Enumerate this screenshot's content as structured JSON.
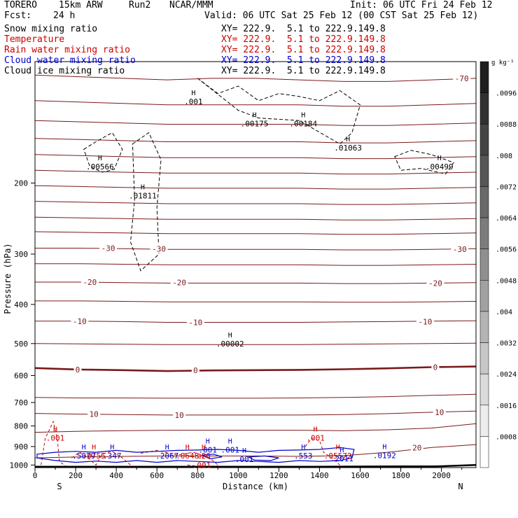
{
  "header": {
    "model": "TORERO",
    "resolution": "15km ARW",
    "run": "Run2",
    "center": "NCAR/MMM",
    "init": "Init: 06 UTC Fri 24 Feb 12",
    "fcst_label": "Fcst:",
    "fcst_value": "24 h",
    "valid": "Valid: 06 UTC Sat 25 Feb 12 (00 CST Sat 25 Feb 12)"
  },
  "fields": [
    {
      "name": "Snow mixing ratio",
      "xy": "XY= 222.9.  5.1 to 222.9.149.8",
      "color": "#000000"
    },
    {
      "name": "Temperature",
      "xy": "XY= 222.9.  5.1 to 222.9.149.8",
      "color": "#cc0000"
    },
    {
      "name": "Rain water mixing ratio",
      "xy": "XY= 222.9.  5.1 to 222.9.149.8",
      "color": "#cc0000"
    },
    {
      "name": "Cloud water mixing ratio",
      "xy": "XY= 222.9.  5.1 to 222.9.149.8",
      "color": "#0000cc"
    },
    {
      "name": "Cloud ice mixing ratio",
      "xy": "XY= 222.9.  5.1 to 222.9.149.8",
      "color": "#000000"
    }
  ],
  "chart_data": {
    "type": "contour",
    "xlabel": "Distance (km)",
    "ylabel": "Pressure (hPa)",
    "xlim": [
      0,
      2170
    ],
    "ylim": [
      1015,
      100
    ],
    "y_scale": "log",
    "x_ticks": [
      0,
      200,
      400,
      600,
      800,
      1000,
      1200,
      1400,
      1600,
      1800,
      2000
    ],
    "y_ticks": [
      200,
      300,
      400,
      500,
      600,
      700,
      800,
      900,
      1000
    ],
    "left_end_label": "S",
    "right_end_label": "N",
    "colors": {
      "temperature": "#7a1a1a",
      "rain": "#cc0000",
      "cloud_water": "#0000cc",
      "ice": "#000000",
      "terrain": "#000000"
    },
    "temperature_contours": [
      {
        "label": "-70",
        "p": [
          108,
          109,
          110,
          111,
          110,
          110,
          111,
          112,
          112,
          111,
          110
        ]
      },
      {
        "label": "",
        "p": [
          125,
          126,
          127,
          128,
          128,
          128,
          128,
          129,
          129,
          128,
          127
        ]
      },
      {
        "label": "",
        "p": [
          140,
          141,
          142,
          143,
          143,
          143,
          143,
          144,
          144,
          143,
          142
        ]
      },
      {
        "label": "",
        "p": [
          155,
          156,
          157,
          158,
          158,
          158,
          158,
          159,
          159,
          158,
          157
        ]
      },
      {
        "label": "",
        "p": [
          170,
          171,
          172,
          173,
          173,
          173,
          173,
          174,
          174,
          173,
          172
        ]
      },
      {
        "label": "",
        "p": [
          186,
          187,
          188,
          189,
          189,
          189,
          189,
          190,
          190,
          189,
          188
        ]
      },
      {
        "label": "",
        "p": [
          203,
          204,
          205,
          206,
          206,
          206,
          206,
          207,
          207,
          206,
          205
        ]
      },
      {
        "label": "",
        "p": [
          222,
          223,
          224,
          225,
          225,
          225,
          225,
          226,
          226,
          225,
          224
        ]
      },
      {
        "label": "",
        "p": [
          243,
          244,
          245,
          246,
          246,
          246,
          246,
          247,
          247,
          246,
          245
        ]
      },
      {
        "label": "",
        "p": [
          264,
          265,
          266,
          267,
          267,
          267,
          267,
          268,
          268,
          267,
          266
        ]
      },
      {
        "label": "-30",
        "p": [
          290,
          290,
          291,
          292,
          292,
          292,
          292,
          293,
          293,
          292,
          291
        ]
      },
      {
        "label": "",
        "p": [
          317,
          317,
          318,
          319,
          319,
          319,
          319,
          320,
          320,
          319,
          318
        ]
      },
      {
        "label": "-20",
        "p": [
          352,
          352,
          353,
          354,
          354,
          354,
          354,
          355,
          355,
          354,
          353
        ]
      },
      {
        "label": "",
        "p": [
          392,
          392,
          393,
          394,
          394,
          394,
          394,
          395,
          395,
          394,
          393
        ]
      },
      {
        "label": "-10",
        "p": [
          440,
          440,
          441,
          443,
          443,
          443,
          443,
          442,
          441,
          440,
          439
        ]
      },
      {
        "label": "",
        "p": [
          500,
          501,
          502,
          503,
          503,
          503,
          503,
          502,
          501,
          500,
          499
        ]
      },
      {
        "label": "0",
        "p": [
          575,
          580,
          582,
          585,
          583,
          582,
          581,
          579,
          576,
          572,
          570
        ]
      },
      {
        "label": "",
        "p": [
          680,
          682,
          682,
          683,
          683,
          683,
          682,
          680,
          677,
          672,
          668
        ]
      },
      {
        "label": "10",
        "p": [
          745,
          748,
          750,
          752,
          752,
          752,
          752,
          750,
          746,
          740,
          735
        ]
      },
      {
        "label": "",
        "p": [
          830,
          825,
          822,
          820,
          820,
          820,
          820,
          822,
          818,
          810,
          790
        ]
      },
      {
        "label": "20",
        "p": [
          960,
          955,
          952,
          950,
          950,
          950,
          952,
          948,
          930,
          905,
          890
        ]
      }
    ],
    "temperature_labels": [
      {
        "text": "-70",
        "x": 2100,
        "p": 110
      },
      {
        "text": "-30",
        "x": 360,
        "p": 290
      },
      {
        "text": "-30",
        "x": 610,
        "p": 291
      },
      {
        "text": "-30",
        "x": 2090,
        "p": 292
      },
      {
        "text": "-20",
        "x": 270,
        "p": 352
      },
      {
        "text": "-20",
        "x": 710,
        "p": 353
      },
      {
        "text": "-20",
        "x": 1970,
        "p": 354
      },
      {
        "text": "-10",
        "x": 220,
        "p": 440
      },
      {
        "text": "-10",
        "x": 790,
        "p": 443
      },
      {
        "text": "-10",
        "x": 1920,
        "p": 441
      },
      {
        "text": "0",
        "x": 210,
        "p": 580
      },
      {
        "text": "0",
        "x": 790,
        "p": 583
      },
      {
        "text": "0",
        "x": 1970,
        "p": 572
      },
      {
        "text": "10",
        "x": 290,
        "p": 748
      },
      {
        "text": "10",
        "x": 710,
        "p": 752
      },
      {
        "text": "10",
        "x": 1990,
        "p": 740
      },
      {
        "text": "20",
        "x": 1880,
        "p": 905
      }
    ],
    "maxima_labels": [
      {
        "text": ".001",
        "x": 780,
        "p": 126,
        "type": "ice"
      },
      {
        "text": ".00175",
        "x": 1080,
        "p": 143,
        "type": "snow"
      },
      {
        "text": ".00184",
        "x": 1320,
        "p": 143,
        "type": "snow"
      },
      {
        "text": ".01063",
        "x": 1540,
        "p": 164,
        "type": "snow"
      },
      {
        "text": ".00566",
        "x": 320,
        "p": 183,
        "type": "ice"
      },
      {
        "text": ".01811",
        "x": 530,
        "p": 216,
        "type": "ice"
      },
      {
        "text": ".00499",
        "x": 1990,
        "p": 183,
        "type": "ice"
      },
      {
        "text": ".00002",
        "x": 960,
        "p": 502,
        "type": "snow"
      },
      {
        "text": ".001",
        "x": 100,
        "p": 860,
        "type": "rain"
      },
      {
        "text": ".001",
        "x": 1380,
        "p": 860,
        "type": "rain"
      },
      {
        "text": ".001",
        "x": 850,
        "p": 920,
        "type": "cloud"
      },
      {
        "text": ".001",
        "x": 960,
        "p": 920,
        "type": "cloud"
      },
      {
        "text": ".5079",
        "x": 240,
        "p": 952,
        "type": "cloud"
      },
      {
        "text": ".0755",
        "x": 290,
        "p": 952,
        "type": "rain"
      },
      {
        "text": ".347",
        "x": 380,
        "p": 952,
        "type": "cloud"
      },
      {
        "text": ".2067",
        "x": 650,
        "p": 952,
        "type": "cloud"
      },
      {
        "text": ".0648",
        "x": 750,
        "p": 952,
        "type": "rain"
      },
      {
        "text": ".20",
        "x": 830,
        "p": 952,
        "type": "rain"
      },
      {
        "text": ".553",
        "x": 1320,
        "p": 952,
        "type": "cloud"
      },
      {
        "text": ".05572",
        "x": 1490,
        "p": 952,
        "type": "rain"
      },
      {
        "text": ".2011",
        "x": 1510,
        "p": 968,
        "type": "cloud"
      },
      {
        "text": ".0192",
        "x": 1720,
        "p": 950,
        "type": "cloud"
      },
      {
        "text": ".001",
        "x": 1030,
        "p": 972,
        "type": "cloud"
      },
      {
        "text": ".001",
        "x": 820,
        "p": 1005,
        "type": "rain"
      }
    ],
    "terrain_p": [
      1010,
      1010,
      1010,
      1010,
      1010,
      1010,
      1010,
      1010,
      1009,
      1008,
      1008,
      1000
    ]
  },
  "colorbar": {
    "unit": "g kg⁻¹",
    "ticks": [
      ".0096",
      ".0088",
      ".008",
      ".0072",
      ".0064",
      ".0056",
      ".0048",
      ".004",
      ".0032",
      ".0024",
      ".0016",
      ".0008"
    ]
  }
}
